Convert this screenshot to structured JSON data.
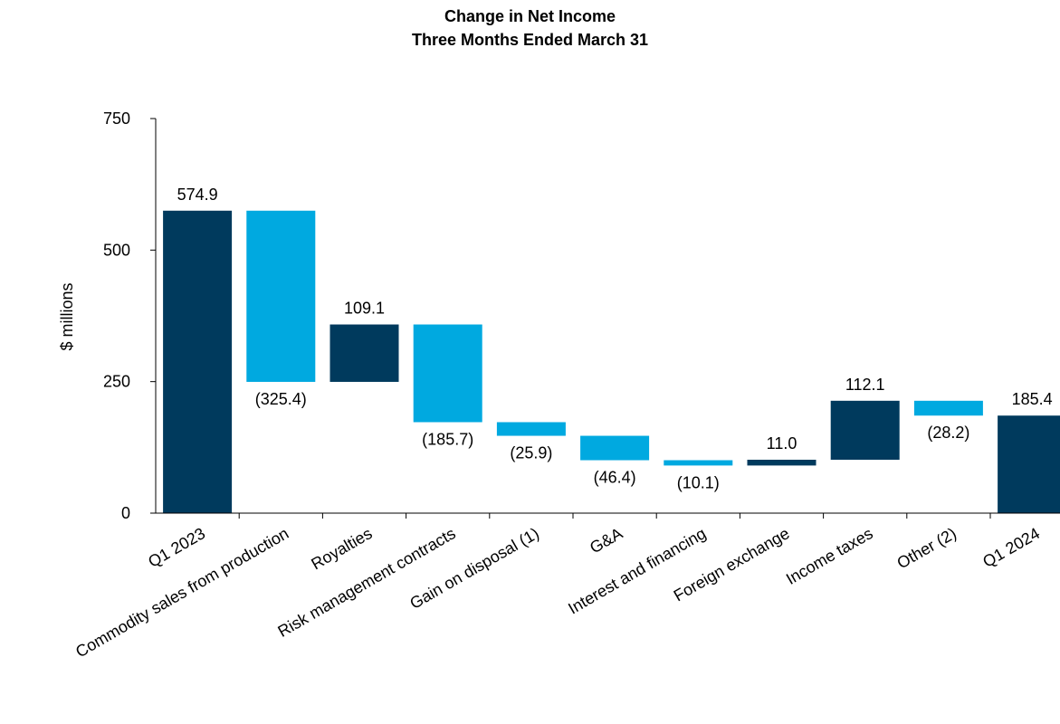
{
  "chart_data": {
    "type": "bar",
    "title": "Change in Net Income",
    "subtitle": "Three Months Ended March 31",
    "ylabel": "$ millions",
    "xlabel": "",
    "ylim": [
      0,
      750
    ],
    "yticks": [
      "0",
      "250",
      "500",
      "750"
    ],
    "grid": false,
    "legend": "none",
    "colors": {
      "total": "#003a5d",
      "increase": "#003a5d",
      "decrease": "#00a9e0"
    },
    "categories": [
      "Q1 2023",
      "Commodity sales from production",
      "Royalties",
      "Risk management contracts",
      "Gain on disposal (1)",
      "G&A",
      "Interest and financing",
      "Foreign exchange",
      "Income taxes",
      "Other (2)",
      "Q1 2024"
    ],
    "values": [
      574.9,
      -325.4,
      109.1,
      -185.7,
      -25.9,
      -46.4,
      -10.1,
      11.0,
      112.1,
      -28.2,
      185.4
    ],
    "kinds": [
      "total",
      "decrease",
      "increase",
      "decrease",
      "decrease",
      "decrease",
      "decrease",
      "increase",
      "increase",
      "decrease",
      "total"
    ],
    "data_labels": [
      "574.9",
      "(325.4)",
      "109.1",
      "(185.7)",
      "(25.9)",
      "(46.4)",
      "(10.1)",
      "11.0",
      "112.1",
      "(28.2)",
      "185.4"
    ]
  }
}
